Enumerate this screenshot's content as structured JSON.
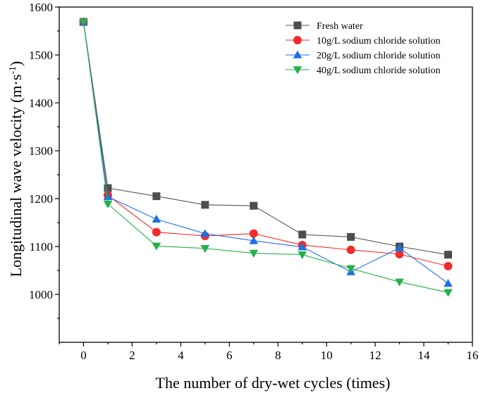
{
  "chart_data": {
    "type": "line",
    "title": "",
    "xlabel": "The number of dry-wet cycles (times)",
    "ylabel_main": "Longitudinal wave velocity (m·s",
    "ylabel_sup": "-1",
    "ylabel_close": ")",
    "xlim": [
      -1,
      16
    ],
    "ylim": [
      900,
      1600
    ],
    "x_ticks": [
      0,
      2,
      4,
      6,
      8,
      10,
      12,
      14,
      16
    ],
    "y_ticks": [
      1000,
      1100,
      1200,
      1300,
      1400,
      1500,
      1600
    ],
    "legend_position": "top-right",
    "x": [
      0,
      1,
      3,
      5,
      7,
      9,
      11,
      13,
      15
    ],
    "series": [
      {
        "name": "Fresh water",
        "marker": "square",
        "color": "#4d4d4d",
        "line_color": "#555555",
        "values": [
          1569,
          1222,
          1205,
          1187,
          1185,
          1125,
          1120,
          1100,
          1083
        ]
      },
      {
        "name": "10g/L sodium chloride solution",
        "marker": "circle",
        "color": "#f22b2b",
        "line_color": "#f22b2b",
        "values": [
          1569,
          1207,
          1130,
          1122,
          1127,
          1103,
          1093,
          1084,
          1059
        ]
      },
      {
        "name": "20g/L sodium chloride solution",
        "marker": "triangle-up",
        "color": "#1f6fe5",
        "line_color": "#1f6fe5",
        "values": [
          1569,
          1204,
          1157,
          1127,
          1112,
          1099,
          1047,
          1097,
          1023
        ]
      },
      {
        "name": "40g/L sodium chloride solution",
        "marker": "triangle-down",
        "color": "#22b14c",
        "line_color": "#22b14c",
        "values": [
          1569,
          1189,
          1101,
          1096,
          1086,
          1083,
          1054,
          1026,
          1004
        ]
      }
    ]
  }
}
